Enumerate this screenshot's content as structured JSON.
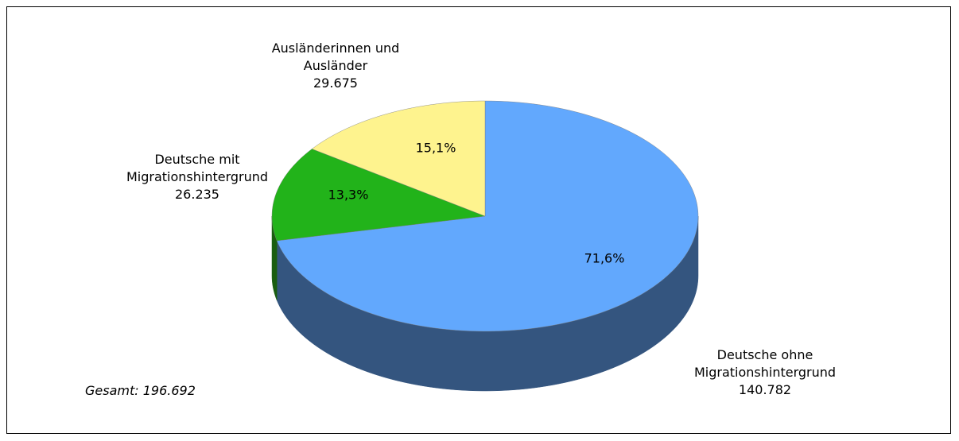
{
  "chart_data": {
    "type": "pie3d",
    "categories": [
      "Deutsche ohne Migrationshintergrund",
      "Deutsche mit Migrationshintergrund",
      "Ausländerinnen und Ausländer"
    ],
    "values": [
      140782,
      26235,
      29675
    ],
    "value_labels": [
      "140.782",
      "26.235",
      "29.675"
    ],
    "percents": [
      71.6,
      13.3,
      15.1
    ],
    "percent_labels": [
      "71,6%",
      "13,3%",
      "15,1%"
    ],
    "colors": [
      "#62a8fd",
      "#22b31a",
      "#fef38e"
    ],
    "side_colors": [
      "#34557f",
      "#1a5e10",
      "#b8ad55"
    ],
    "annotation": "Gesamt: 196.692"
  }
}
